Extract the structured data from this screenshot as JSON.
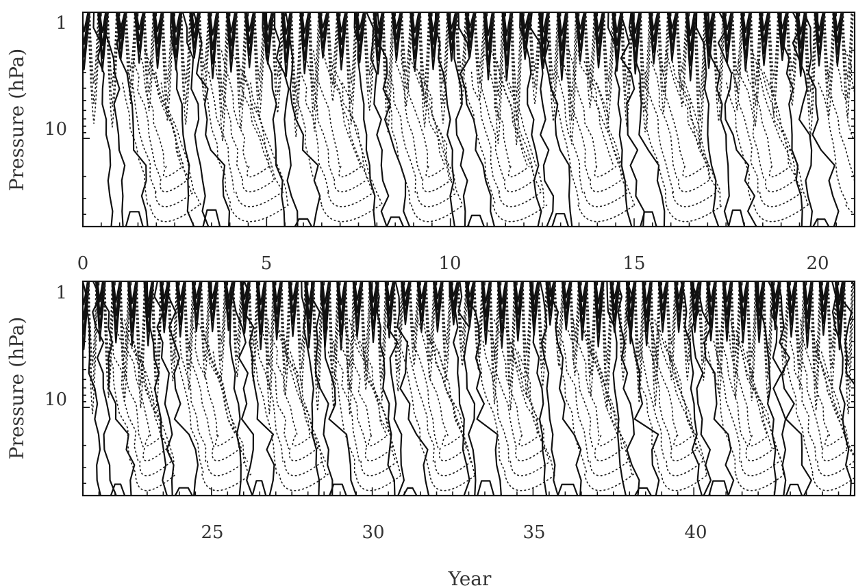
{
  "chart_data": [
    {
      "type": "contour",
      "xlabel": "",
      "ylabel": "Pressure (hPa)",
      "y_scale": "log",
      "y_inverted": true,
      "ylim": [
        1,
        50
      ],
      "xlim": [
        0,
        21
      ],
      "x_ticks": [
        0,
        5,
        10,
        15,
        20
      ],
      "y_ticks": [
        1,
        10
      ],
      "contours": {
        "positive": "solid",
        "negative": "dotted"
      },
      "descending_phase_onsets_year": [
        0.3,
        2.4,
        4.9,
        7.4,
        9.6,
        11.9,
        14.3,
        16.7,
        19.0
      ],
      "grid": false
    },
    {
      "type": "contour",
      "xlabel": "Year",
      "ylabel": "Pressure (hPa)",
      "y_scale": "log",
      "y_inverted": true,
      "ylim": [
        1,
        50
      ],
      "xlim": [
        21,
        45
      ],
      "x_ticks": [
        25,
        30,
        35,
        40
      ],
      "y_ticks": [
        1,
        10
      ],
      "contours": {
        "positive": "solid",
        "negative": "dotted"
      },
      "descending_phase_onsets_year": [
        21.0,
        23.0,
        25.4,
        27.8,
        30.1,
        32.4,
        34.9,
        37.3,
        39.6,
        42.0,
        44.3
      ],
      "grid": false
    }
  ],
  "labels": {
    "top_ylabel": "Pressure (hPa)",
    "bottom_ylabel": "Pressure (hPa)",
    "xlabel": "Year",
    "top_xticks": [
      "0",
      "5",
      "10",
      "15",
      "20"
    ],
    "bottom_xticks": [
      "25",
      "30",
      "35",
      "40"
    ],
    "top_yticks": [
      "1",
      "10"
    ],
    "bottom_yticks": [
      "1",
      "10"
    ]
  }
}
